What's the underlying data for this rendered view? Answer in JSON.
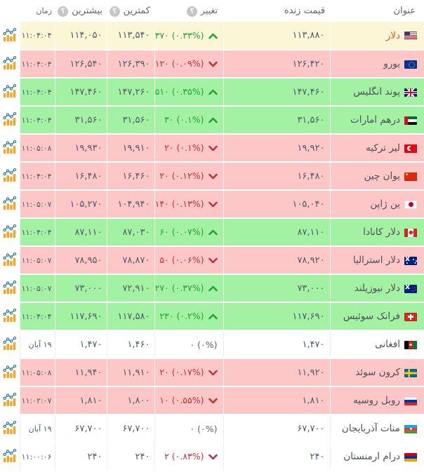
{
  "header": {
    "title": "عنوان",
    "live": "قیمت زنده",
    "change": "تغییر",
    "low": "کمترین",
    "high": "بیشترین",
    "time": "زمان",
    "help_badge": "؟"
  },
  "colors": {
    "up_row_bg": "#a3f1a3",
    "down_row_bg": "#fdc7c7",
    "flat_row_bg": "#ffffff",
    "highlight_row_bg": "#fbf7d6",
    "up_text": "#1fa637",
    "down_text": "#c4313c",
    "number_text": "#4d5b6a",
    "highlight_title_text": "#e8571f",
    "chart_bar_color": "#f2a52c",
    "chart_line_color": "#2e7e9e"
  },
  "icons": {
    "row_chart": "mini-bar-line-chart-icon",
    "up_arrow": "chevron-up-icon",
    "down_arrow": "chevron-down-icon",
    "help": "question-mark-badge-icon"
  },
  "rows": [
    {
      "name": "دلار",
      "flag": "us",
      "live": "۱۱۳,۸۸۰",
      "change": "۳۷۰ (۰.۳۳%)",
      "direction": "up",
      "low": "۱۱۳,۵۴۰",
      "high": "۱۱۴,۰۵۰",
      "time": "۱۱:۰۴:۰۴",
      "row_style": "highlight"
    },
    {
      "name": "یورو",
      "flag": "eu",
      "live": "۱۲۶,۴۲۰",
      "change": "۱۲۰ (۰.۰۹%)",
      "direction": "down",
      "low": "۱۲۶,۳۹۰",
      "high": "۱۲۶,۵۴۰",
      "time": "۱۱:۰۴:۰۴",
      "row_style": "down"
    },
    {
      "name": "پوند انگلیس",
      "flag": "gb",
      "live": "۱۴۷,۴۶۰",
      "change": "۵۱۰ (۰.۳۵%)",
      "direction": "up",
      "low": "۱۴۷,۲۶۰",
      "high": "۱۴۷,۴۶۰",
      "time": "۱۱:۰۴:۰۴",
      "row_style": "up"
    },
    {
      "name": "درهم امارات",
      "flag": "ae",
      "live": "۳۱,۵۶۰",
      "change": "۳۰ (۰.۱%)",
      "direction": "up",
      "low": "۳۱,۵۶۰",
      "high": "۳۱,۵۶۰",
      "time": "۱۱:۰۴:۰۴",
      "row_style": "up"
    },
    {
      "name": "لیر ترکیه",
      "flag": "tr",
      "live": "۱۹,۹۲۰",
      "change": "۲۰ (۰.۱%)",
      "direction": "down",
      "low": "۱۹,۹۱۰",
      "high": "۱۹,۹۳۰",
      "time": "۱۱:۰۵:۰۸",
      "row_style": "down"
    },
    {
      "name": "یوان چین",
      "flag": "cn",
      "live": "۱۶,۴۸۰",
      "change": "۲۰ (۰.۱۲%)",
      "direction": "down",
      "low": "۱۶,۴۶۰",
      "high": "۱۶,۴۸۰",
      "time": "۱۱:۰۴:۰۴",
      "row_style": "down"
    },
    {
      "name": "ین ژاپن",
      "flag": "jp",
      "live": "۱۰۵,۰۴۰",
      "change": "۱۴۰ (۰.۱۳%)",
      "direction": "down",
      "low": "۱۰۴,۹۴۰",
      "high": "۱۰۵,۲۷۰",
      "time": "۱۱:۰۵:۰۷",
      "row_style": "down"
    },
    {
      "name": "دلار کانادا",
      "flag": "ca",
      "live": "۸۷,۱۱۰",
      "change": "۶۰ (۰.۰۷%)",
      "direction": "up",
      "low": "۸۷,۰۳۰",
      "high": "۸۷,۱۱۰",
      "time": "۱۱:۰۴:۰۴",
      "row_style": "up"
    },
    {
      "name": "دلار استرالیا",
      "flag": "au",
      "live": "۷۸,۹۲۰",
      "change": "۵۰ (۰.۰۶%)",
      "direction": "down",
      "low": "۷۸,۸۷۰",
      "high": "۷۸,۹۵۰",
      "time": "۱۱:۰۵:۰۷",
      "row_style": "down"
    },
    {
      "name": "دلار نیوزیلند",
      "flag": "nz",
      "live": "۷۳,۰۰۰",
      "change": "۲۷۰ (۰.۳۷%)",
      "direction": "up",
      "low": "۷۲,۹۱۰",
      "high": "۷۳,۰۰۰",
      "time": "۱۱:۰۵:۰۷",
      "row_style": "up"
    },
    {
      "name": "فرانک سوئیس",
      "flag": "ch",
      "live": "۱۱۷,۶۹۰",
      "change": "۲۳۰ (۰.۲%)",
      "direction": "up",
      "low": "۱۱۷,۵۸۰",
      "high": "۱۱۷,۶۹۰",
      "time": "۱۱:۰۴:۰۴",
      "row_style": "up"
    },
    {
      "name": "افغانی",
      "flag": "af",
      "live": "۱,۴۷۰",
      "change": "۰ (۰%)",
      "direction": "none",
      "low": "۱,۴۶۰",
      "high": "۱,۴۷۰",
      "time": "۱۹ آبان",
      "row_style": "flat"
    },
    {
      "name": "کرون سوئد",
      "flag": "se",
      "live": "۱۱,۹۲۰",
      "change": "۲۰ (۰.۱۷%)",
      "direction": "down",
      "low": "۱۱,۹۱۰",
      "high": "۱۱,۹۴۰",
      "time": "۱۱:۰۵:۰۸",
      "row_style": "down"
    },
    {
      "name": "روبل روسیه",
      "flag": "ru",
      "live": "۱,۸۱۰",
      "change": "۱۰ (۰.۵۵%)",
      "direction": "down",
      "low": "۱,۸۰۰",
      "high": "۱,۸۱۰",
      "time": "۱۱:۰۲:۰۷",
      "row_style": "down"
    },
    {
      "name": "منات آذربایجان",
      "flag": "az",
      "live": "۶۷,۷۰۰",
      "change": "۰ (۰%)",
      "direction": "none",
      "low": "۶۷,۷۰۰",
      "high": "۶۷,۷۰۰",
      "time": "۱۹ آبان",
      "row_style": "flat"
    },
    {
      "name": "درام ارمنستان",
      "flag": "am",
      "live": "۲۴۰",
      "change": "۲ (۰.۸۳%)",
      "direction": "down",
      "low": "۲۴۰",
      "high": "۲۴۰",
      "time": "۱۱:۰۰:۰۶",
      "row_style": "flat"
    }
  ]
}
